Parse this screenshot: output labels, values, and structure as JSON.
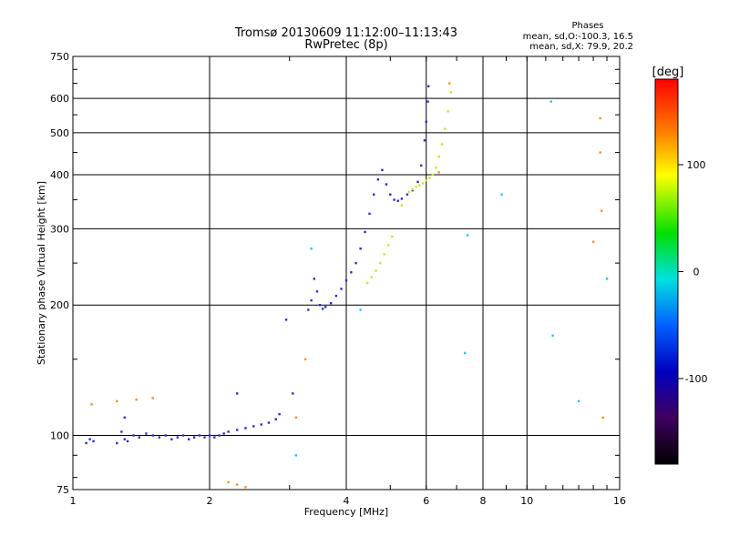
{
  "chart_data": {
    "type": "scatter",
    "title": "Tromsø 20130609 11:12:00–11:13:43",
    "subtitle": "RwPretec (8p)",
    "xlabel": "Frequency [MHz]",
    "ylabel": "Stationary phase Virtual Height [km]",
    "x_scale": "log2",
    "y_scale": "log",
    "xlim": [
      1,
      16
    ],
    "ylim": [
      75,
      750
    ],
    "x_ticks": [
      "1",
      "2",
      "4",
      "6",
      "8",
      "10",
      "16"
    ],
    "y_ticks": [
      "75",
      "100",
      "200",
      "300",
      "400",
      "500",
      "600",
      "750"
    ],
    "grid": true,
    "phases_box": {
      "heading": "Phases",
      "line1": "mean, sd,O:-100.3, 16.5",
      "line2": "mean, sd,X: 79.9, 20.2"
    },
    "colorbar": {
      "title": "[deg]",
      "ticks": [
        "100",
        "0",
        "-100"
      ],
      "range": [
        -180,
        180
      ],
      "colormap": "rainbow"
    },
    "series": [
      {
        "mode": "O",
        "phase_deg": -100,
        "color": "#2a2ae0",
        "points": [
          [
            1.07,
            96
          ],
          [
            1.09,
            98
          ],
          [
            1.11,
            97
          ],
          [
            1.25,
            96
          ],
          [
            1.28,
            102
          ],
          [
            1.3,
            98
          ],
          [
            1.32,
            97
          ],
          [
            1.36,
            100
          ],
          [
            1.4,
            99
          ],
          [
            1.45,
            101
          ],
          [
            1.5,
            100
          ],
          [
            1.55,
            99
          ],
          [
            1.6,
            100
          ],
          [
            1.65,
            98
          ],
          [
            1.7,
            99
          ],
          [
            1.75,
            100
          ],
          [
            1.8,
            98
          ],
          [
            1.85,
            99
          ],
          [
            1.9,
            100
          ],
          [
            1.95,
            99
          ],
          [
            2.0,
            100
          ],
          [
            2.05,
            99
          ],
          [
            2.1,
            100
          ],
          [
            2.15,
            101
          ],
          [
            2.2,
            102
          ],
          [
            2.3,
            103
          ],
          [
            2.4,
            104
          ],
          [
            2.5,
            105
          ],
          [
            2.6,
            106
          ],
          [
            2.7,
            107
          ],
          [
            2.8,
            109
          ],
          [
            2.85,
            112
          ],
          [
            3.3,
            195
          ],
          [
            3.35,
            205
          ],
          [
            3.4,
            230
          ],
          [
            3.45,
            215
          ],
          [
            3.5,
            200
          ],
          [
            3.55,
            196
          ],
          [
            3.6,
            198
          ],
          [
            3.7,
            202
          ],
          [
            3.8,
            210
          ],
          [
            3.9,
            218
          ],
          [
            4.0,
            228
          ],
          [
            4.1,
            238
          ],
          [
            4.2,
            250
          ],
          [
            4.3,
            270
          ],
          [
            4.4,
            295
          ],
          [
            4.5,
            325
          ],
          [
            4.6,
            360
          ],
          [
            4.7,
            390
          ],
          [
            4.8,
            410
          ],
          [
            4.9,
            380
          ],
          [
            5.0,
            360
          ],
          [
            5.1,
            350
          ],
          [
            5.2,
            348
          ],
          [
            5.3,
            352
          ],
          [
            5.45,
            360
          ],
          [
            5.6,
            368
          ],
          [
            5.75,
            385
          ],
          [
            5.85,
            420
          ],
          [
            5.95,
            480
          ],
          [
            6.0,
            530
          ],
          [
            6.05,
            590
          ],
          [
            6.07,
            640
          ],
          [
            3.05,
            125
          ],
          [
            2.95,
            185
          ],
          [
            2.3,
            125
          ],
          [
            1.3,
            110
          ]
        ]
      },
      {
        "mode": "X",
        "phase_deg": 80,
        "color": "#c8e81e",
        "points": [
          [
            4.45,
            225
          ],
          [
            4.55,
            232
          ],
          [
            4.65,
            240
          ],
          [
            4.75,
            250
          ],
          [
            4.85,
            262
          ],
          [
            4.95,
            275
          ],
          [
            5.05,
            288
          ],
          [
            5.3,
            340
          ],
          [
            5.5,
            365
          ],
          [
            5.6,
            370
          ],
          [
            5.7,
            375
          ],
          [
            5.8,
            378
          ],
          [
            5.9,
            382
          ],
          [
            6.0,
            388
          ],
          [
            6.1,
            393
          ],
          [
            6.2,
            400
          ],
          [
            6.3,
            415
          ],
          [
            6.4,
            440
          ],
          [
            6.5,
            470
          ],
          [
            6.6,
            510
          ],
          [
            6.7,
            560
          ],
          [
            6.8,
            620
          ]
        ]
      },
      {
        "mode": "scattered",
        "phase_deg": 140,
        "color": "#ff8c1e",
        "points": [
          [
            1.1,
            118
          ],
          [
            1.25,
            120
          ],
          [
            1.38,
            121
          ],
          [
            1.5,
            122
          ],
          [
            2.2,
            78
          ],
          [
            2.3,
            77
          ],
          [
            2.4,
            76
          ],
          [
            3.1,
            110
          ],
          [
            3.25,
            150
          ],
          [
            6.4,
            405
          ],
          [
            6.75,
            650
          ],
          [
            14.5,
            540
          ],
          [
            14.5,
            450
          ],
          [
            14.6,
            330
          ],
          [
            14.7,
            110
          ],
          [
            14.0,
            280
          ]
        ]
      },
      {
        "mode": "noise",
        "phase_deg": -20,
        "color": "#1ec8f0",
        "points": [
          [
            3.35,
            270
          ],
          [
            11.3,
            590
          ],
          [
            11.4,
            170
          ],
          [
            13.0,
            120
          ],
          [
            15.0,
            230
          ],
          [
            7.4,
            290
          ],
          [
            7.3,
            155
          ],
          [
            8.8,
            360
          ],
          [
            4.3,
            195
          ],
          [
            3.1,
            90
          ]
        ]
      }
    ]
  }
}
